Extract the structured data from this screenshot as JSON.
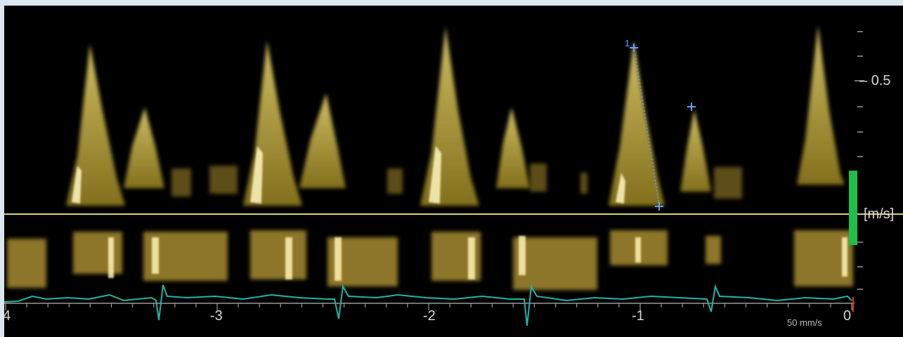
{
  "velocity_scale": {
    "tick_label": "0.5",
    "unit_label": "[m/s]",
    "bar_color": "#1fbf4a"
  },
  "time_axis": {
    "labels": [
      "4",
      "-3",
      "-2",
      "-1",
      "0"
    ],
    "zero_marker_color": "#e23a2a"
  },
  "sweep_speed": "50 mm/s",
  "caliper_markers": {
    "label": "1",
    "color": "#6a9cff"
  },
  "colors": {
    "baseline": "#d7d27a",
    "ecg_trace": "#21b5a8",
    "spectral": "#e6c84a"
  }
}
